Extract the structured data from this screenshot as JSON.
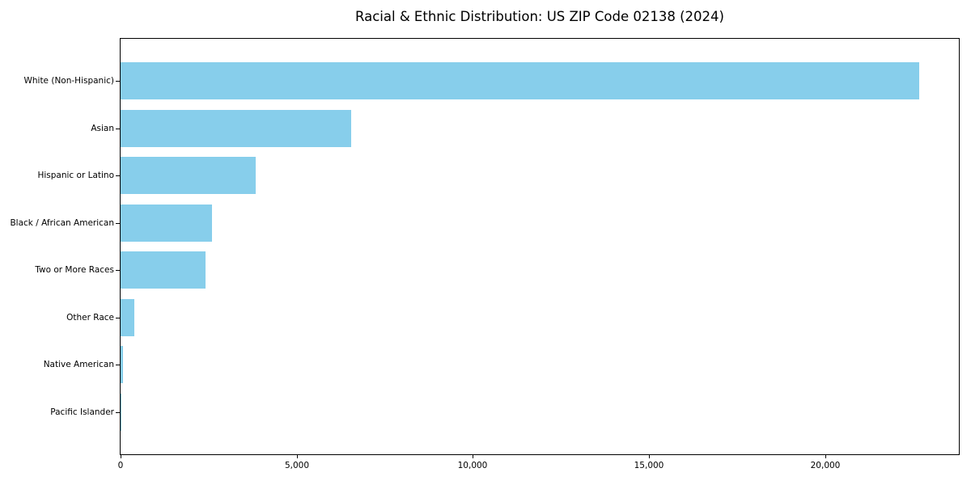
{
  "chart_data": {
    "type": "bar",
    "orientation": "horizontal",
    "title": "Racial & Ethnic Distribution: US ZIP Code 02138 (2024)",
    "categories": [
      "White (Non-Hispanic)",
      "Asian",
      "Hispanic or Latino",
      "Black / African American",
      "Two or More Races",
      "Other Race",
      "Native American",
      "Pacific Islander"
    ],
    "values": [
      22660,
      6550,
      3835,
      2595,
      2410,
      390,
      70,
      10
    ],
    "xlabel": "",
    "ylabel": "",
    "xlim": [
      0,
      23790
    ],
    "xticks": [
      0,
      5000,
      10000,
      15000,
      20000
    ],
    "xtick_labels": [
      "0",
      "5,000",
      "10,000",
      "15,000",
      "20,000"
    ],
    "grid": false,
    "legend": null,
    "bar_color": "#87CEEB",
    "spine_color": "#000000",
    "text_color": "#000000",
    "background_color": "#ffffff"
  }
}
